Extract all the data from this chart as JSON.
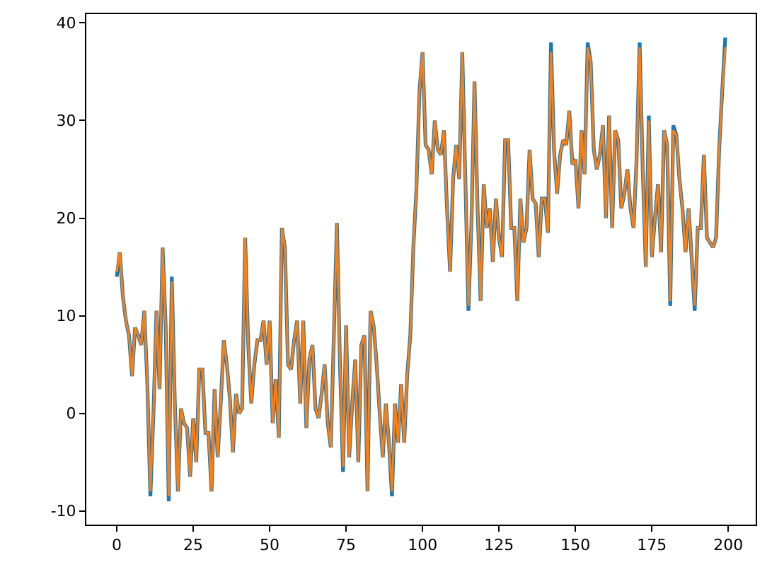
{
  "chart_data": {
    "type": "line",
    "xlim": [
      -9.95,
      208.95
    ],
    "ylim": [
      -11.4,
      40.9
    ],
    "xticks": [
      0,
      25,
      50,
      75,
      100,
      125,
      150,
      175,
      200
    ],
    "yticks": [
      -10,
      0,
      10,
      20,
      30,
      40
    ],
    "x": [
      0,
      1,
      2,
      3,
      4,
      5,
      6,
      7,
      8,
      9,
      10,
      11,
      12,
      13,
      14,
      15,
      16,
      17,
      18,
      19,
      20,
      21,
      22,
      23,
      24,
      25,
      26,
      27,
      28,
      29,
      30,
      31,
      32,
      33,
      34,
      35,
      36,
      37,
      38,
      39,
      40,
      41,
      42,
      43,
      44,
      45,
      46,
      47,
      48,
      49,
      50,
      51,
      52,
      53,
      54,
      55,
      56,
      57,
      58,
      59,
      60,
      61,
      62,
      63,
      64,
      65,
      66,
      67,
      68,
      69,
      70,
      71,
      72,
      73,
      74,
      75,
      76,
      77,
      78,
      79,
      80,
      81,
      82,
      83,
      84,
      85,
      86,
      87,
      88,
      89,
      90,
      91,
      92,
      93,
      94,
      95,
      96,
      97,
      98,
      99,
      100,
      101,
      102,
      103,
      104,
      105,
      106,
      107,
      108,
      109,
      110,
      111,
      112,
      113,
      114,
      115,
      116,
      117,
      118,
      119,
      120,
      121,
      122,
      123,
      124,
      125,
      126,
      127,
      128,
      129,
      130,
      131,
      132,
      133,
      134,
      135,
      136,
      137,
      138,
      139,
      140,
      141,
      142,
      143,
      144,
      145,
      146,
      147,
      148,
      149,
      150,
      151,
      152,
      153,
      154,
      155,
      156,
      157,
      158,
      159,
      160,
      161,
      162,
      163,
      164,
      165,
      166,
      167,
      168,
      169,
      170,
      171,
      172,
      173,
      174,
      175,
      176,
      177,
      178,
      179,
      180,
      181,
      182,
      183,
      184,
      185,
      186,
      187,
      188,
      189,
      190,
      191,
      192,
      193,
      194,
      195,
      196,
      197,
      198,
      199
    ],
    "series": [
      {
        "color": "#1f77b4",
        "values": [
          14,
          16.5,
          12,
          9.5,
          8,
          3.8,
          8.8,
          8,
          7,
          10.5,
          3,
          -8.5,
          0,
          10.5,
          2.5,
          17,
          9,
          -9,
          14,
          1,
          -8,
          0.5,
          -1,
          -1.5,
          -6.5,
          -0.5,
          -5,
          4.5,
          4.5,
          -2,
          -2,
          -8,
          2.5,
          -4.5,
          1,
          7.5,
          5,
          1.5,
          -4,
          2,
          0,
          0.5,
          18,
          7,
          1,
          5,
          7.5,
          7.5,
          9.5,
          5,
          9.5,
          -1,
          3.5,
          -2.5,
          19,
          17,
          5,
          4.5,
          7.5,
          9.5,
          1,
          9.5,
          -1.5,
          5.5,
          7,
          0.5,
          -0.5,
          2,
          5,
          -1,
          -3.5,
          8,
          19.5,
          5,
          -6,
          9,
          -4.5,
          1,
          5.5,
          -5,
          7,
          8,
          -8,
          10.5,
          9,
          5,
          0,
          -4.5,
          1,
          -3,
          -8.5,
          1,
          -3,
          3,
          -3,
          4,
          8,
          17,
          23,
          33,
          37,
          27.5,
          27,
          24.5,
          30,
          27,
          26.5,
          29,
          21,
          14.5,
          24,
          27.5,
          24,
          37,
          24,
          10.5,
          19.5,
          34,
          21,
          11.5,
          23.5,
          19,
          21,
          15.5,
          22,
          18,
          16,
          28,
          28,
          19,
          19,
          11.5,
          22,
          17.5,
          19,
          27,
          22,
          21.5,
          16,
          22,
          22,
          18.5,
          38,
          27,
          22.5,
          26.5,
          28,
          27.5,
          31,
          25.5,
          26,
          21,
          29,
          24.5,
          38,
          36,
          27,
          25,
          26.5,
          29.5,
          20,
          30.5,
          19,
          29,
          28,
          21,
          22.5,
          25,
          21,
          19,
          26,
          38,
          25,
          15,
          30.5,
          16,
          20,
          23.5,
          16.5,
          29,
          27.5,
          11,
          29.5,
          28.5,
          24,
          21,
          16.5,
          21,
          16,
          10.5,
          19,
          19,
          26.5,
          18,
          17.5,
          17,
          18,
          27,
          33,
          38.5
        ]
      },
      {
        "color": "#ff7f0e",
        "values": [
          14.5,
          16.5,
          12,
          9.5,
          8,
          3.8,
          8.8,
          8,
          7,
          10.5,
          3,
          -8,
          0,
          10.5,
          2.5,
          17,
          9,
          -8.5,
          13.5,
          1,
          -8,
          0.5,
          -1,
          -1.5,
          -6.5,
          -0.5,
          -5,
          4.5,
          4.5,
          -2,
          -2,
          -8,
          2.5,
          -4.5,
          1,
          7.5,
          5,
          1.5,
          -4,
          2,
          0,
          0.5,
          18,
          7,
          1,
          5,
          7.5,
          7.5,
          9.5,
          5,
          9.5,
          -1,
          3.5,
          -2.5,
          19,
          17,
          5,
          4.5,
          7.5,
          9.5,
          1,
          9.5,
          -1.5,
          5.5,
          7,
          0.5,
          -0.5,
          2,
          5,
          -1,
          -3.5,
          8,
          19.5,
          5,
          -5.5,
          9,
          -4.5,
          1,
          5.5,
          -5,
          7,
          8,
          -8,
          10.5,
          9,
          5,
          0,
          -4.5,
          1,
          -3,
          -8,
          1,
          -3,
          3,
          -3,
          4,
          8,
          17,
          23,
          33,
          37,
          27.5,
          27,
          24.5,
          30,
          27,
          26.5,
          29,
          21,
          14.5,
          24,
          27.5,
          24,
          37,
          24,
          11,
          19.5,
          34,
          21,
          11.5,
          23.5,
          19,
          21,
          15.5,
          22,
          18,
          16,
          28,
          28,
          19,
          19,
          11.5,
          22,
          17.5,
          19,
          27,
          22,
          21.5,
          16,
          22,
          22,
          18.5,
          37,
          27,
          22.5,
          26.5,
          28,
          27.5,
          31,
          25.5,
          26,
          21,
          29,
          24.5,
          37.5,
          36,
          27,
          25,
          26.5,
          29.5,
          20,
          30.5,
          19,
          29,
          28,
          21,
          22.5,
          25,
          21,
          19,
          26,
          37.5,
          25,
          15,
          30,
          16,
          20,
          23.5,
          16.5,
          29,
          27.5,
          11.5,
          29,
          28.5,
          24,
          21,
          16.5,
          21,
          16,
          11,
          19,
          19,
          26.5,
          18,
          17.5,
          17,
          18,
          27,
          33,
          37.5
        ]
      }
    ]
  }
}
